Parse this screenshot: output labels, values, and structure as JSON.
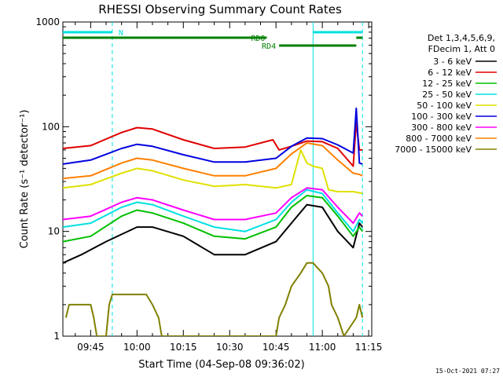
{
  "chart_data": {
    "type": "line",
    "title": "RHESSI Observing Summary Count Rates",
    "xlabel": "Start Time (04-Sep-08 09:36:02)",
    "ylabel": "Count Rate (s⁻¹ detector⁻¹)",
    "yscale": "log",
    "ylim": [
      1,
      1000
    ],
    "xlim": [
      "09:36",
      "11:16"
    ],
    "x_ticks": [
      "09:45",
      "10:00",
      "10:15",
      "10:30",
      "10:45",
      "11:00",
      "11:15"
    ],
    "y_ticks": [
      "1",
      "10",
      "100",
      "1000"
    ],
    "grid": false,
    "legend_position": "right",
    "legend_header": [
      "Det 1,3,4,5,6,9,",
      "FDecim 1, Att 0"
    ],
    "footer_timestamp": "15-Oct-2021 07:27",
    "series": [
      {
        "name": "3 - 6 keV",
        "color": "#000000",
        "points": [
          [
            "09:36",
            5
          ],
          [
            "09:42",
            6
          ],
          [
            "09:50",
            8
          ],
          [
            "10:00",
            11
          ],
          [
            "10:05",
            11
          ],
          [
            "10:15",
            9
          ],
          [
            "10:25",
            6
          ],
          [
            "10:35",
            6
          ],
          [
            "10:45",
            8
          ],
          [
            "10:50",
            12
          ],
          [
            "10:55",
            18
          ],
          [
            "11:00",
            17
          ],
          [
            "11:05",
            10
          ],
          [
            "11:10",
            7
          ],
          [
            "11:12",
            12
          ],
          [
            "11:13",
            11
          ]
        ]
      },
      {
        "name": "6 - 12 keV",
        "color": "#e00000",
        "points": [
          [
            "09:36",
            62
          ],
          [
            "09:45",
            66
          ],
          [
            "09:55",
            88
          ],
          [
            "10:00",
            98
          ],
          [
            "10:05",
            95
          ],
          [
            "10:15",
            75
          ],
          [
            "10:25",
            62
          ],
          [
            "10:35",
            64
          ],
          [
            "10:44",
            75
          ],
          [
            "10:46",
            60
          ],
          [
            "10:50",
            65
          ],
          [
            "10:55",
            73
          ],
          [
            "11:00",
            72
          ],
          [
            "11:05",
            62
          ],
          [
            "11:10",
            42
          ],
          [
            "11:11",
            110
          ],
          [
            "11:12",
            60
          ],
          [
            "11:13",
            60
          ]
        ]
      },
      {
        "name": "12 - 25 keV",
        "color": "#00c000",
        "points": [
          [
            "09:36",
            8
          ],
          [
            "09:45",
            9
          ],
          [
            "09:55",
            14
          ],
          [
            "10:00",
            16
          ],
          [
            "10:05",
            15
          ],
          [
            "10:15",
            12
          ],
          [
            "10:25",
            9
          ],
          [
            "10:35",
            8.5
          ],
          [
            "10:45",
            11
          ],
          [
            "10:50",
            17
          ],
          [
            "10:55",
            22
          ],
          [
            "11:00",
            21
          ],
          [
            "11:05",
            14
          ],
          [
            "11:10",
            9
          ],
          [
            "11:12",
            11
          ],
          [
            "11:13",
            10
          ]
        ]
      },
      {
        "name": "25 - 50 keV",
        "color": "#00e0e0",
        "points": [
          [
            "09:36",
            11
          ],
          [
            "09:45",
            12
          ],
          [
            "09:55",
            17
          ],
          [
            "10:00",
            19
          ],
          [
            "10:05",
            18
          ],
          [
            "10:15",
            14
          ],
          [
            "10:25",
            11
          ],
          [
            "10:35",
            10
          ],
          [
            "10:45",
            13
          ],
          [
            "10:50",
            19
          ],
          [
            "10:55",
            25
          ],
          [
            "11:00",
            23
          ],
          [
            "11:05",
            15
          ],
          [
            "11:10",
            10
          ],
          [
            "11:12",
            13
          ],
          [
            "11:13",
            12
          ]
        ]
      },
      {
        "name": "50 - 100 keV",
        "color": "#e0e000",
        "points": [
          [
            "09:36",
            26
          ],
          [
            "09:45",
            28
          ],
          [
            "09:55",
            36
          ],
          [
            "10:00",
            40
          ],
          [
            "10:05",
            38
          ],
          [
            "10:15",
            31
          ],
          [
            "10:25",
            27
          ],
          [
            "10:35",
            28
          ],
          [
            "10:45",
            26
          ],
          [
            "10:50",
            28
          ],
          [
            "10:53",
            60
          ],
          [
            "10:55",
            45
          ],
          [
            "10:57",
            42
          ],
          [
            "11:00",
            40
          ],
          [
            "11:02",
            25
          ],
          [
            "11:05",
            24
          ],
          [
            "11:10",
            24
          ],
          [
            "11:13",
            23
          ]
        ]
      },
      {
        "name": "100 - 300 keV",
        "color": "#0000e0",
        "points": [
          [
            "09:36",
            44
          ],
          [
            "09:45",
            48
          ],
          [
            "09:55",
            62
          ],
          [
            "10:00",
            68
          ],
          [
            "10:05",
            65
          ],
          [
            "10:15",
            54
          ],
          [
            "10:25",
            46
          ],
          [
            "10:35",
            46
          ],
          [
            "10:45",
            50
          ],
          [
            "10:50",
            65
          ],
          [
            "10:55",
            78
          ],
          [
            "11:00",
            77
          ],
          [
            "11:05",
            67
          ],
          [
            "11:10",
            56
          ],
          [
            "11:11",
            150
          ],
          [
            "11:12",
            45
          ],
          [
            "11:13",
            44
          ]
        ]
      },
      {
        "name": "300 - 800 keV",
        "color": "#ff00ff",
        "points": [
          [
            "09:36",
            13
          ],
          [
            "09:45",
            14
          ],
          [
            "09:55",
            19
          ],
          [
            "10:00",
            21
          ],
          [
            "10:05",
            20
          ],
          [
            "10:15",
            16
          ],
          [
            "10:25",
            13
          ],
          [
            "10:35",
            13
          ],
          [
            "10:45",
            15
          ],
          [
            "10:50",
            21
          ],
          [
            "10:55",
            26
          ],
          [
            "11:00",
            25
          ],
          [
            "11:05",
            17
          ],
          [
            "11:10",
            12
          ],
          [
            "11:12",
            15
          ],
          [
            "11:13",
            14
          ]
        ]
      },
      {
        "name": "800 - 7000 keV",
        "color": "#ff8000",
        "points": [
          [
            "09:36",
            32
          ],
          [
            "09:45",
            34
          ],
          [
            "09:55",
            45
          ],
          [
            "10:00",
            50
          ],
          [
            "10:05",
            48
          ],
          [
            "10:15",
            40
          ],
          [
            "10:25",
            34
          ],
          [
            "10:35",
            34
          ],
          [
            "10:45",
            40
          ],
          [
            "10:50",
            55
          ],
          [
            "10:55",
            70
          ],
          [
            "11:00",
            66
          ],
          [
            "11:05",
            48
          ],
          [
            "11:10",
            36
          ],
          [
            "11:12",
            35
          ],
          [
            "11:13",
            34
          ]
        ]
      },
      {
        "name": "7000 - 15000 keV",
        "color": "#808000",
        "points": [
          [
            "09:37",
            1.5
          ],
          [
            "09:38",
            2
          ],
          [
            "09:41",
            2
          ],
          [
            "09:42",
            2
          ],
          [
            "09:45",
            2
          ],
          [
            "09:46",
            1.5
          ],
          [
            "09:47",
            1
          ],
          [
            "09:50",
            1
          ],
          [
            "09:51",
            2
          ],
          [
            "09:52",
            2.5
          ],
          [
            "10:00",
            2.5
          ],
          [
            "10:03",
            2.5
          ],
          [
            "10:05",
            2
          ],
          [
            "10:07",
            1.5
          ],
          [
            "10:08",
            1
          ],
          [
            "10:45",
            1
          ],
          [
            "10:46",
            1.5
          ],
          [
            "10:48",
            2
          ],
          [
            "10:50",
            3
          ],
          [
            "10:53",
            4
          ],
          [
            "10:55",
            5
          ],
          [
            "10:57",
            5
          ],
          [
            "11:00",
            4
          ],
          [
            "11:02",
            3
          ],
          [
            "11:03",
            2
          ],
          [
            "11:05",
            1.5
          ],
          [
            "11:07",
            1
          ],
          [
            "11:11",
            1.5
          ],
          [
            "11:12",
            2
          ],
          [
            "11:13",
            1.5
          ]
        ]
      }
    ],
    "flags": [
      {
        "label": "N",
        "color": "#00e0e0",
        "x_start": "09:36",
        "x_end": "09:52",
        "level": 0
      },
      {
        "label": "",
        "color": "#00e0e0",
        "x_start": "10:57",
        "x_end": "11:13",
        "level": 0
      },
      {
        "label": "RD0",
        "color": "#008000",
        "x_start": "09:36",
        "x_end": "10:42",
        "level": 1
      },
      {
        "label": "",
        "color": "#008000",
        "x_start": "11:11",
        "x_end": "11:13",
        "level": 1
      },
      {
        "label": "RD4",
        "color": "#008000",
        "x_start": "10:46",
        "x_end": "11:11",
        "level": 2
      }
    ],
    "vertical_lines": [
      {
        "x": "09:52",
        "color": "#00e0e0",
        "style": "dashed"
      },
      {
        "x": "10:57",
        "color": "#00e0e0",
        "style": "solid"
      },
      {
        "x": "11:13",
        "color": "#00e0e0",
        "style": "dashed"
      }
    ]
  }
}
